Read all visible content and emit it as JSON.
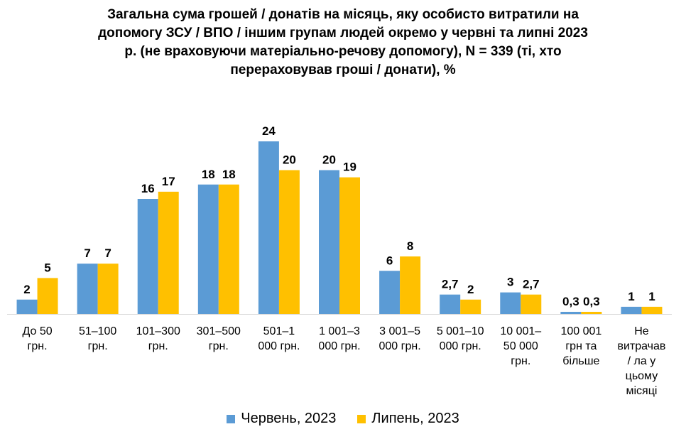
{
  "chart_data": {
    "type": "bar",
    "title_lines": [
      "Загальна сума грошей / донатів на місяць, яку особисто витратили на",
      "допомогу ЗСУ / ВПО / іншим групам людей окремо у червні та липні 2023",
      "р. (не враховуючи матеріально-речову допомогу), N = 339 (ті, хто",
      "перераховував гроші / донати), %"
    ],
    "categories": [
      [
        "До 50",
        "грн."
      ],
      [
        "51–100",
        "грн."
      ],
      [
        "101–300",
        "грн."
      ],
      [
        "301–500",
        "грн."
      ],
      [
        "501–1",
        "000 грн."
      ],
      [
        "1 001–3",
        "000 грн."
      ],
      [
        "3 001–5",
        "000 грн."
      ],
      [
        "5 001–10",
        "000 грн."
      ],
      [
        "10 001–",
        "50 000",
        "грн."
      ],
      [
        "100 001",
        "грн та",
        "більше"
      ],
      [
        "Не",
        "витрачав",
        "/ ла у",
        "цьому",
        "місяці"
      ]
    ],
    "series": [
      {
        "name": "Червень, 2023",
        "color": "#5B9BD5",
        "values": [
          2,
          7,
          16,
          18,
          24,
          20,
          6,
          2.7,
          3,
          0.3,
          1
        ],
        "labels": [
          "2",
          "7",
          "16",
          "18",
          "24",
          "20",
          "6",
          "2,7",
          "3",
          "0,3",
          "1"
        ]
      },
      {
        "name": "Липень, 2023",
        "color": "#FFC000",
        "values": [
          5,
          7,
          17,
          18,
          20,
          19,
          8,
          2,
          2.7,
          0.3,
          1
        ],
        "labels": [
          "5",
          "7",
          "17",
          "18",
          "20",
          "19",
          "8",
          "2",
          "2,7",
          "0,3",
          "1"
        ]
      }
    ],
    "ylim": [
      0,
      24
    ],
    "grid": false,
    "legend_position": "bottom"
  }
}
